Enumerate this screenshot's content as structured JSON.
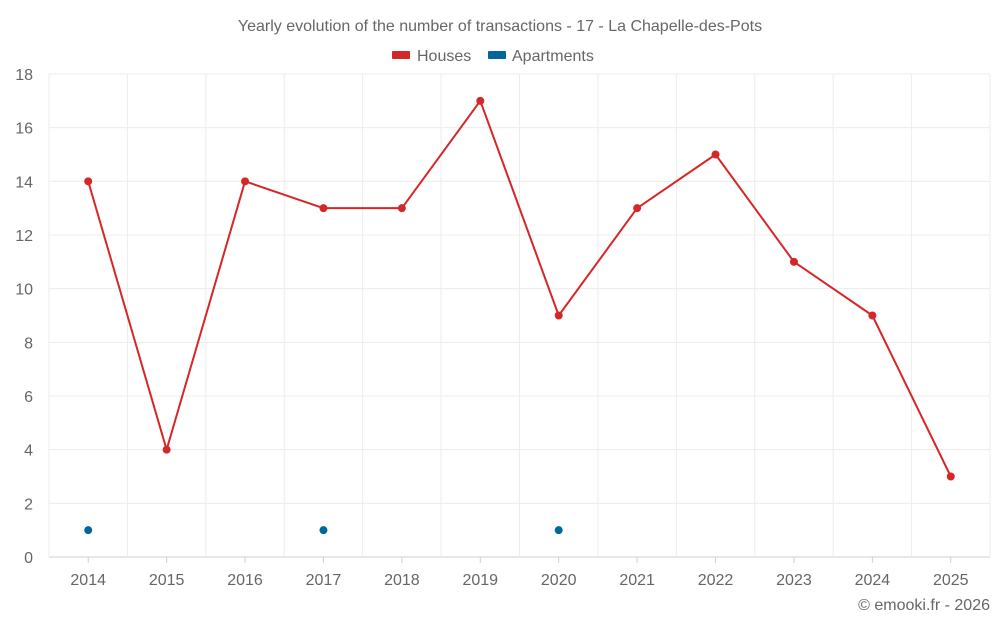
{
  "chart_data": {
    "type": "line",
    "title": "Yearly evolution of the number of transactions - 17 - La Chapelle-des-Pots",
    "categories": [
      "2014",
      "2015",
      "2016",
      "2017",
      "2018",
      "2019",
      "2020",
      "2021",
      "2022",
      "2023",
      "2024",
      "2025"
    ],
    "ylim": [
      0,
      18
    ],
    "yticks": [
      0,
      2,
      4,
      6,
      8,
      10,
      12,
      14,
      16,
      18
    ],
    "grid": true,
    "legend_position": "top-center",
    "series": [
      {
        "name": "Houses",
        "color": "#d62728",
        "values": [
          14,
          4,
          14,
          13,
          13,
          17,
          9,
          13,
          15,
          11,
          9,
          3
        ]
      },
      {
        "name": "Apartments",
        "color": "#00679d",
        "values": [
          1,
          null,
          null,
          1,
          null,
          null,
          1,
          null,
          null,
          null,
          null,
          null
        ]
      }
    ]
  },
  "footer": {
    "credit": "© emooki.fr - 2026"
  }
}
